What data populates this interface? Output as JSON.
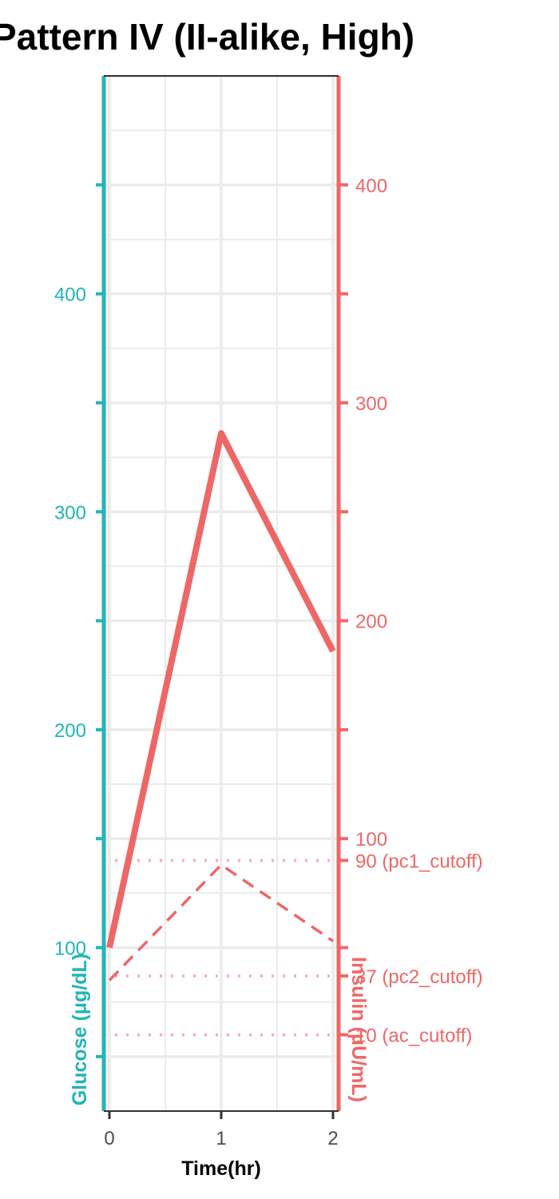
{
  "chart_data": {
    "type": "line",
    "title": "Pattern IV (II-alike, High)",
    "xlabel": "Time(hr)",
    "x": [
      0,
      1,
      2
    ],
    "xlim": [
      -0.05,
      2.05
    ],
    "xticks": [
      "0",
      "1",
      "2"
    ],
    "grid": true,
    "colors": {
      "glucose": "#22b5b8",
      "insulin": "#ee6767",
      "cutoff": "#f7a9b8"
    },
    "left_axis": {
      "label": "Glucose (μg/dL)",
      "ylim": [
        25,
        500
      ],
      "ticks": [
        100,
        200,
        300,
        400
      ],
      "tick_labels": [
        "100",
        "200",
        "300",
        "400"
      ],
      "minor_ticks": [
        50,
        150,
        250,
        350,
        450
      ]
    },
    "right_axis": {
      "label": "Insulin (μU/mL)",
      "ylim": [
        -25,
        450
      ],
      "ticks": [
        100,
        200,
        300,
        400
      ],
      "tick_labels": [
        "100",
        "200",
        "300",
        "400"
      ],
      "minor_ticks": [
        50,
        150,
        250,
        350
      ]
    },
    "series": [
      {
        "axis": "right",
        "style": "solid",
        "values": [
          50,
          286,
          186
        ]
      },
      {
        "axis": "left",
        "style": "dashed",
        "values": [
          85,
          138,
          103
        ]
      }
    ],
    "cutoffs": [
      {
        "value": 90,
        "label": "90 (pc1_cutoff)"
      },
      {
        "value": 37,
        "label": "37 (pc2_cutoff)"
      },
      {
        "value": 10,
        "label": "10 (ac_cutoff)"
      }
    ]
  }
}
